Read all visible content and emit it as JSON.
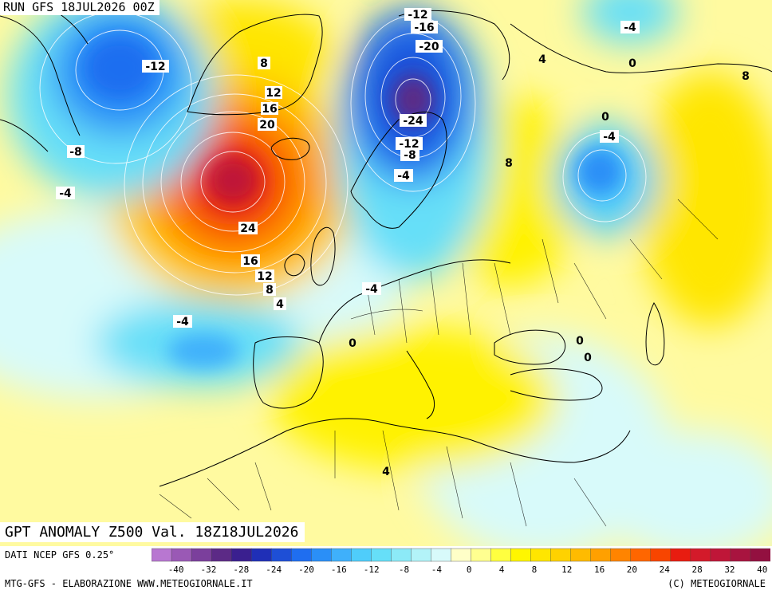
{
  "header": {
    "run_title": "RUN GFS 18JUL2026 00Z"
  },
  "map_title": "GPT ANOMALY Z500 Val. 18Z18JUL2026",
  "footer": {
    "data_source": "DATI NCEP GFS 0.25°",
    "credit_left": "MTG-GFS - ELABORAZIONE WWW.METEOGIORNALE.IT",
    "credit_right": "(C) METEOGIORNALE"
  },
  "colorbar": {
    "ticks": [
      "-40",
      "-32",
      "-28",
      "-24",
      "-20",
      "-16",
      "-12",
      "-8",
      "-4",
      "0",
      "4",
      "8",
      "12",
      "16",
      "20",
      "24",
      "28",
      "32",
      "40"
    ],
    "colors": [
      "#b877d1",
      "#9a59b5",
      "#7b3f9c",
      "#5c2a86",
      "#3a1f8f",
      "#1f2fb7",
      "#1e4fd6",
      "#1f6ef0",
      "#2a8ff7",
      "#3fb0fb",
      "#4fcdfb",
      "#66dff8",
      "#8ceaf7",
      "#b3f3f8",
      "#d8fafa",
      "#ffffc8",
      "#ffff90",
      "#ffff40",
      "#fff600",
      "#ffe600",
      "#ffd200",
      "#ffbb00",
      "#ffa000",
      "#ff8400",
      "#ff6600",
      "#f84500",
      "#e81c10",
      "#d31a2a",
      "#bf1638",
      "#a8143f",
      "#931040"
    ]
  },
  "contour_labels": [
    {
      "text": "-12",
      "id": "label-greenland-west"
    },
    {
      "text": "-8",
      "id": "label-labrador"
    },
    {
      "text": "-4",
      "id": "label-newfoundland"
    },
    {
      "text": "8",
      "id": "label-greenland-8"
    },
    {
      "text": "12",
      "id": "label-iceland-12"
    },
    {
      "text": "16",
      "id": "label-iceland-16"
    },
    {
      "text": "20",
      "id": "label-iceland-20"
    },
    {
      "text": "24",
      "id": "label-atlantic-24"
    },
    {
      "text": "16",
      "id": "label-atlantic-16"
    },
    {
      "text": "12",
      "id": "label-atlantic-12"
    },
    {
      "text": "8",
      "id": "label-atlantic-8"
    },
    {
      "text": "4",
      "id": "label-atlantic-4"
    },
    {
      "text": "-12",
      "id": "label-arctic-12"
    },
    {
      "text": "-16",
      "id": "label-arctic-16"
    },
    {
      "text": "-20",
      "id": "label-arctic-20"
    },
    {
      "text": "-24",
      "id": "label-scandinavia-24"
    },
    {
      "text": "-12",
      "id": "label-scandinavia-12"
    },
    {
      "text": "-8",
      "id": "label-scandinavia-8"
    },
    {
      "text": "-4",
      "id": "label-baltic-4"
    },
    {
      "text": "-4",
      "id": "label-northsea-4"
    },
    {
      "text": "-4",
      "id": "label-azores-4"
    },
    {
      "text": "0",
      "id": "label-france-0"
    },
    {
      "text": "4",
      "id": "label-barents-4"
    },
    {
      "text": "-4",
      "id": "label-barents-minus4"
    },
    {
      "text": "0",
      "id": "label-barents-0"
    },
    {
      "text": "8",
      "id": "label-urals-8"
    },
    {
      "text": "0",
      "id": "label-russia-0"
    },
    {
      "text": "-4",
      "id": "label-russia-minus4"
    },
    {
      "text": "8",
      "id": "label-ukraine-8"
    },
    {
      "text": "0",
      "id": "label-turkey-0a"
    },
    {
      "text": "0",
      "id": "label-turkey-0b"
    },
    {
      "text": "4",
      "id": "label-libya-4"
    }
  ]
}
